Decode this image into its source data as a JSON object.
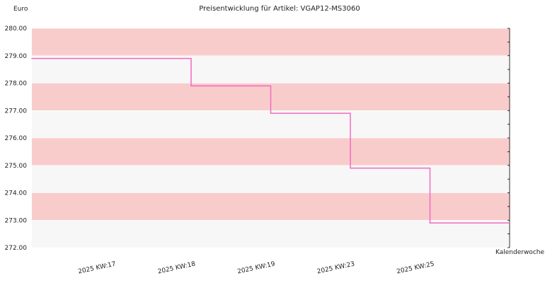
{
  "chart_data": {
    "type": "line",
    "step": true,
    "title": "Preisentwicklung für Artikel: VGAP12-MS3060",
    "ylabel": "Euro",
    "xlabel": "Kalenderwoche",
    "ylim": [
      272.0,
      280.0
    ],
    "yticks": [
      "272.00",
      "273.00",
      "274.00",
      "275.00",
      "276.00",
      "277.00",
      "278.00",
      "279.00",
      "280.00"
    ],
    "categories": [
      "2025 KW:17",
      "2025 KW:18",
      "2025 KW:19",
      "2025 KW:23",
      "2025 KW:25"
    ],
    "series": [
      {
        "values": [
          278.9,
          277.9,
          276.9,
          274.9,
          272.9
        ]
      }
    ],
    "grid": true,
    "line_color": "#f06cc0",
    "band_colors": [
      "#f9cccc",
      "#f7f7f7"
    ]
  }
}
